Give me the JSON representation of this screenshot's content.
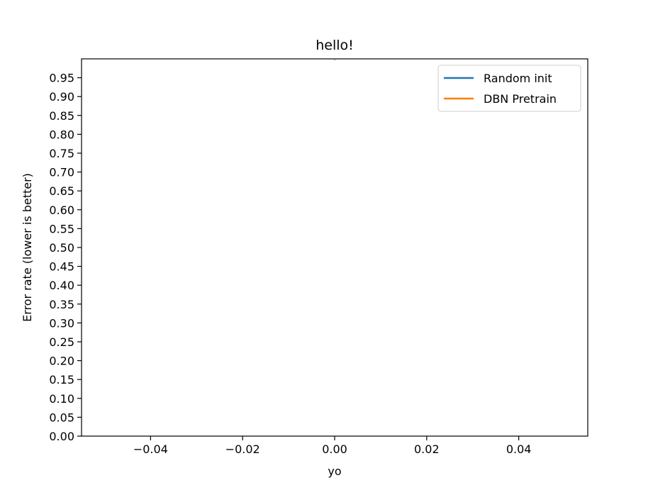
{
  "chart_data": {
    "type": "line",
    "title": "hello!",
    "xlabel": "yo",
    "ylabel": "Error rate (lower is better)",
    "xlim": [
      -0.055,
      0.055
    ],
    "ylim": [
      0.0,
      1.0
    ],
    "xticks": [
      -0.04,
      -0.02,
      0.0,
      0.02,
      0.04
    ],
    "xtick_labels": [
      "−0.04",
      "−0.02",
      "0.00",
      "0.02",
      "0.04"
    ],
    "yticks": [
      0.0,
      0.05,
      0.1,
      0.15,
      0.2,
      0.25,
      0.3,
      0.35,
      0.4,
      0.45,
      0.5,
      0.55,
      0.6,
      0.65,
      0.7,
      0.75,
      0.8,
      0.85,
      0.9,
      0.95
    ],
    "ytick_labels": [
      "0.00",
      "0.05",
      "0.10",
      "0.15",
      "0.20",
      "0.25",
      "0.30",
      "0.35",
      "0.40",
      "0.45",
      "0.50",
      "0.55",
      "0.60",
      "0.65",
      "0.70",
      "0.75",
      "0.80",
      "0.85",
      "0.90",
      "0.95"
    ],
    "grid": false,
    "legend_position": "top-right",
    "series": [
      {
        "name": "Random init",
        "color": "#1f77b4",
        "x": [
          0.0,
          0.0
        ],
        "y": [
          0.997,
          1.0
        ]
      },
      {
        "name": "DBN Pretrain",
        "color": "#ff7f0e",
        "x": [],
        "y": []
      }
    ]
  }
}
